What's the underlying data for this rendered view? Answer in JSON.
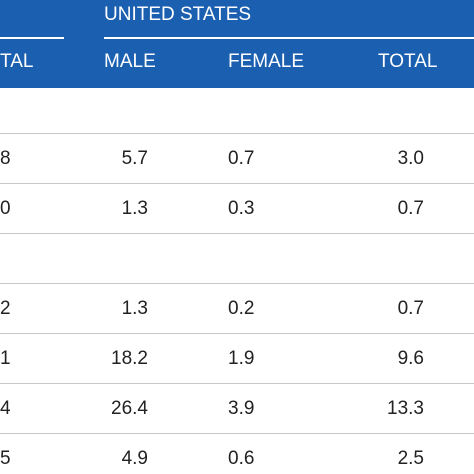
{
  "header": {
    "group_label": "UNITED STATES",
    "left_partial_label": "TAL",
    "columns": [
      "MALE",
      "FEMALE",
      "TOTAL"
    ]
  },
  "rows": [
    {
      "partial": "",
      "male": "",
      "female": "",
      "total": ""
    },
    {
      "partial": "8",
      "male": "5.7",
      "female": "0.7",
      "total": "3.0"
    },
    {
      "partial": "0",
      "male": "1.3",
      "female": "0.3",
      "total": "0.7"
    },
    {
      "partial": "",
      "male": "",
      "female": "",
      "total": ""
    },
    {
      "partial": "2",
      "male": "1.3",
      "female": "0.2",
      "total": "0.7"
    },
    {
      "partial": "1",
      "male": "18.2",
      "female": "1.9",
      "total": "9.6"
    },
    {
      "partial": "4",
      "male": "26.4",
      "female": "3.9",
      "total": "13.3"
    },
    {
      "partial": "5",
      "male": "4.9",
      "female": "0.6",
      "total": "2.5"
    }
  ],
  "colors": {
    "header_bg": "#1b5fb0",
    "header_text": "#ffffff",
    "rule": "#c8c8c8"
  }
}
